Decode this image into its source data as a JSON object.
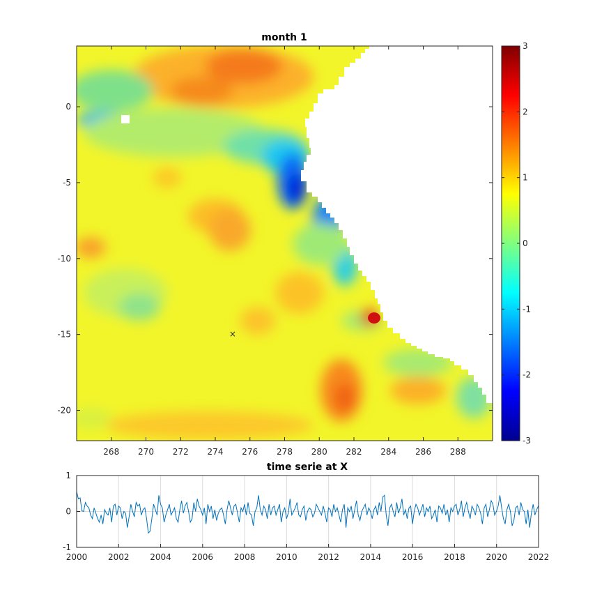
{
  "chart_data": [
    {
      "type": "heatmap",
      "title": "month 1",
      "xlabel": "",
      "ylabel": "",
      "xlim": [
        266,
        290
      ],
      "ylim": [
        -22,
        4
      ],
      "xticks": [
        "268",
        "270",
        "272",
        "274",
        "276",
        "278",
        "280",
        "282",
        "284",
        "286",
        "288"
      ],
      "xtick_values": [
        268,
        270,
        272,
        274,
        276,
        278,
        280,
        282,
        284,
        286,
        288
      ],
      "yticks": [
        "0",
        "-5",
        "-10",
        "-15",
        "-20"
      ],
      "ytick_values": [
        0,
        -5,
        -10,
        -15,
        -20
      ],
      "colormap": "jet",
      "marker": {
        "label": "×",
        "x": 275,
        "y": -15
      },
      "colorbar": {
        "clim": [
          -3,
          3
        ],
        "ticks": [
          "3",
          "2",
          "1",
          "0",
          "-1",
          "-2",
          "-3"
        ],
        "tick_values": [
          3,
          2,
          1,
          0,
          -1,
          -2,
          -3
        ]
      },
      "mask_color": "#ffffff"
    },
    {
      "type": "line",
      "title": "time serie at X",
      "xlabel": "",
      "ylabel": "",
      "xlim": [
        2000,
        2022
      ],
      "ylim": [
        -1,
        1
      ],
      "xticks": [
        "2000",
        "2002",
        "2004",
        "2006",
        "2008",
        "2010",
        "2012",
        "2014",
        "2016",
        "2018",
        "2020",
        "2022"
      ],
      "xtick_values": [
        2000,
        2002,
        2004,
        2006,
        2008,
        2010,
        2012,
        2014,
        2016,
        2018,
        2020,
        2022
      ],
      "yticks": [
        "1",
        "0",
        "-1"
      ],
      "ytick_values": [
        1,
        0,
        -1
      ],
      "grid": true,
      "series": [
        {
          "color": "#0072bd",
          "x_start": 2000.0,
          "x_step": 0.0833,
          "values": [
            0.55,
            0.35,
            0.38,
            0.02,
            0.0,
            0.25,
            0.15,
            0.1,
            -0.1,
            -0.2,
            0.1,
            -0.05,
            -0.2,
            -0.3,
            -0.1,
            -0.35,
            0.05,
            -0.05,
            -0.1,
            0.1,
            -0.3,
            0.15,
            0.2,
            -0.1,
            0.15,
            0.1,
            -0.2,
            0.0,
            -0.05,
            -0.45,
            -0.15,
            0.2,
            0.0,
            -0.15,
            0.25,
            0.15,
            0.2,
            -0.1,
            0.05,
            0.1,
            -0.2,
            -0.6,
            -0.55,
            -0.2,
            0.2,
            0.05,
            -0.1,
            0.45,
            0.2,
            0.1,
            -0.3,
            -0.1,
            0.05,
            0.2,
            -0.1,
            0.0,
            0.1,
            -0.2,
            -0.3,
            0.05,
            0.3,
            -0.05,
            0.15,
            0.25,
            0.0,
            -0.3,
            -0.2,
            0.25,
            0.0,
            0.35,
            0.15,
            0.05,
            -0.1,
            0.1,
            -0.35,
            0.2,
            0.0,
            0.15,
            -0.2,
            0.05,
            -0.25,
            -0.05,
            0.05,
            0.1,
            -0.1,
            -0.35,
            0.05,
            0.3,
            0.1,
            -0.1,
            0.15,
            0.2,
            -0.05,
            -0.3,
            0.1,
            0.0,
            0.2,
            -0.1,
            0.25,
            -0.05,
            -0.1,
            -0.4,
            0.0,
            0.1,
            0.45,
            0.05,
            -0.1,
            0.15,
            0.05,
            -0.2,
            0.2,
            -0.1,
            0.1,
            0.15,
            -0.1,
            0.05,
            0.2,
            -0.3,
            0.0,
            0.1,
            -0.2,
            -0.05,
            0.35,
            -0.1,
            0.0,
            0.1,
            0.25,
            -0.1,
            -0.15,
            0.05,
            0.15,
            -0.25,
            0.0,
            0.1,
            0.05,
            -0.15,
            -0.05,
            0.2,
            0.1,
            0.0,
            -0.1,
            0.15,
            -0.05,
            -0.3,
            0.1,
            0.05,
            -0.15,
            0.2,
            0.0,
            0.1,
            -0.1,
            -0.3,
            0.05,
            0.2,
            -0.45,
            0.1,
            0.0,
            0.15,
            -0.2,
            0.05,
            0.3,
            -0.1,
            -0.25,
            0.0,
            0.1,
            0.2,
            -0.1,
            0.1,
            0.0,
            -0.2,
            0.05,
            0.15,
            -0.1,
            0.25,
            0.0,
            0.4,
            0.45,
            -0.1,
            -0.4,
            0.1,
            0.2,
            0.0,
            -0.15,
            0.25,
            -0.05,
            0.1,
            0.35,
            -0.1,
            0.05,
            -0.2,
            0.1,
            0.15,
            -0.35,
            0.0,
            0.2,
            0.1,
            -0.1,
            0.05,
            0.2,
            -0.15,
            0.1,
            0.0,
            0.15,
            -0.2,
            -0.1,
            0.05,
            -0.3,
            0.15,
            0.1,
            -0.05,
            0.2,
            -0.1,
            0.05,
            -0.3,
            0.1,
            0.0,
            0.15,
            0.2,
            -0.1,
            0.05,
            0.3,
            -0.15,
            0.1,
            0.25,
            0.0,
            -0.2,
            0.15,
            0.05,
            -0.1,
            0.2,
            0.1,
            -0.05,
            -0.35,
            0.1,
            0.2,
            -0.15,
            0.05,
            0.3,
            0.2,
            -0.1,
            0.0,
            0.15,
            0.45,
            0.1,
            -0.2,
            -0.35,
            0.05,
            0.2,
            0.0,
            -0.4,
            -0.25,
            0.1,
            0.15,
            -0.1,
            0.25,
            0.05,
            0.0,
            -0.35,
            0.05,
            -0.45,
            -0.05,
            0.2,
            -0.1,
            0.05,
            0.15,
            -0.15,
            0.0,
            0.25,
            -0.2,
            -0.35
          ]
        }
      ]
    }
  ]
}
